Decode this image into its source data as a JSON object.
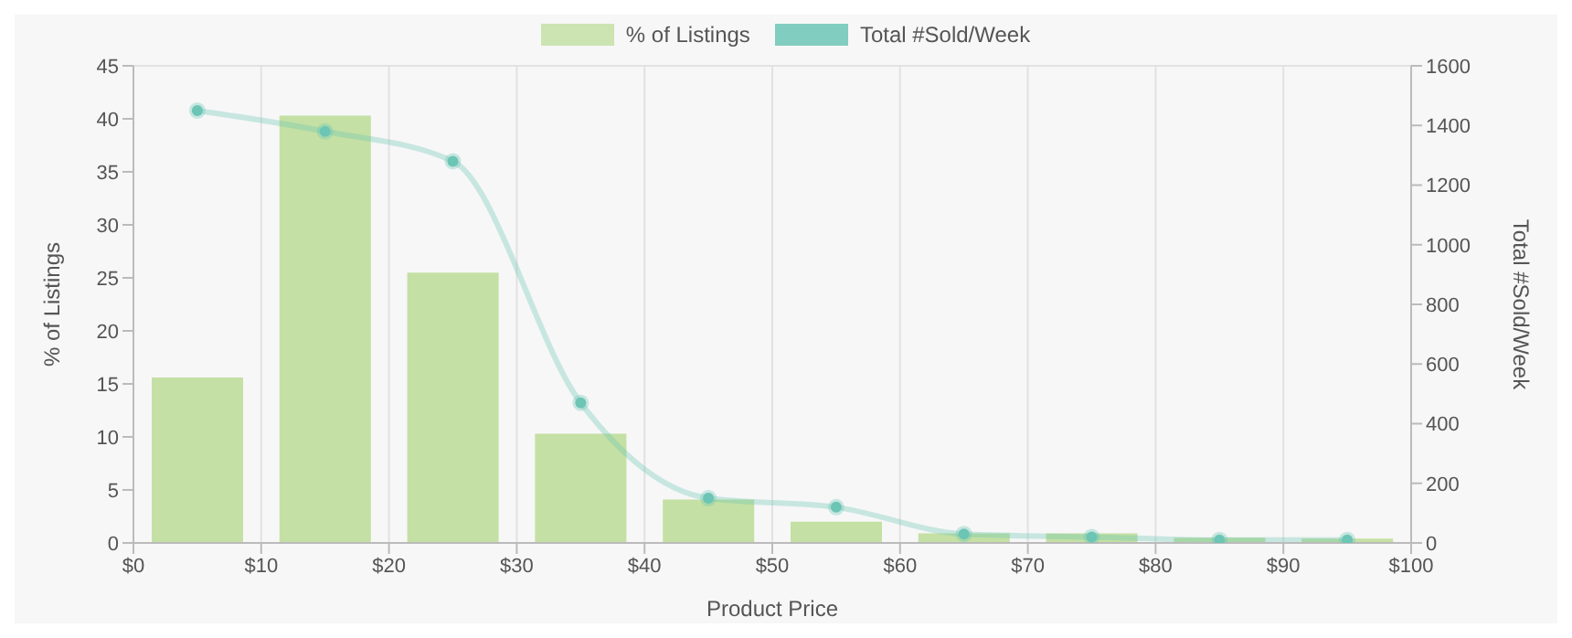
{
  "chart_data": {
    "type": "bar",
    "xlabel": "Product Price",
    "ylabel": "% of Listings",
    "y2label": "Total #Sold/Week",
    "x": [
      5,
      15,
      25,
      35,
      45,
      55,
      65,
      75,
      85,
      95
    ],
    "series": [
      {
        "name": "% of Listings",
        "color": "#c4e0a4",
        "values": [
          15.6,
          40.3,
          25.5,
          10.3,
          4.1,
          2.0,
          0.9,
          0.9,
          0.5,
          0.4
        ]
      },
      {
        "name": "Total #Sold/Week",
        "type": "line",
        "axis": "y2",
        "color": "#6cc5b5",
        "values": [
          1450,
          1380,
          1280,
          470,
          150,
          120,
          30,
          20,
          10,
          10
        ]
      }
    ],
    "xlim": [
      0,
      100
    ],
    "xticks": [
      {
        "value": 0,
        "label": "$0"
      },
      {
        "value": 10,
        "label": "$10"
      },
      {
        "value": 20,
        "label": "$20"
      },
      {
        "value": 30,
        "label": "$30"
      },
      {
        "value": 40,
        "label": "$40"
      },
      {
        "value": 50,
        "label": "$50"
      },
      {
        "value": 60,
        "label": "$60"
      },
      {
        "value": 70,
        "label": "$70"
      },
      {
        "value": 80,
        "label": "$80"
      },
      {
        "value": 90,
        "label": "$90"
      },
      {
        "value": 100,
        "label": "$100"
      }
    ],
    "ylim": [
      0,
      45
    ],
    "yticks": [
      0,
      5,
      10,
      15,
      20,
      25,
      30,
      35,
      40,
      45
    ],
    "y2lim": [
      0,
      1600
    ],
    "y2ticks": [
      0,
      200,
      400,
      600,
      800,
      1000,
      1200,
      1400,
      1600
    ],
    "grid": true,
    "legend": "top",
    "marker": "circle"
  }
}
